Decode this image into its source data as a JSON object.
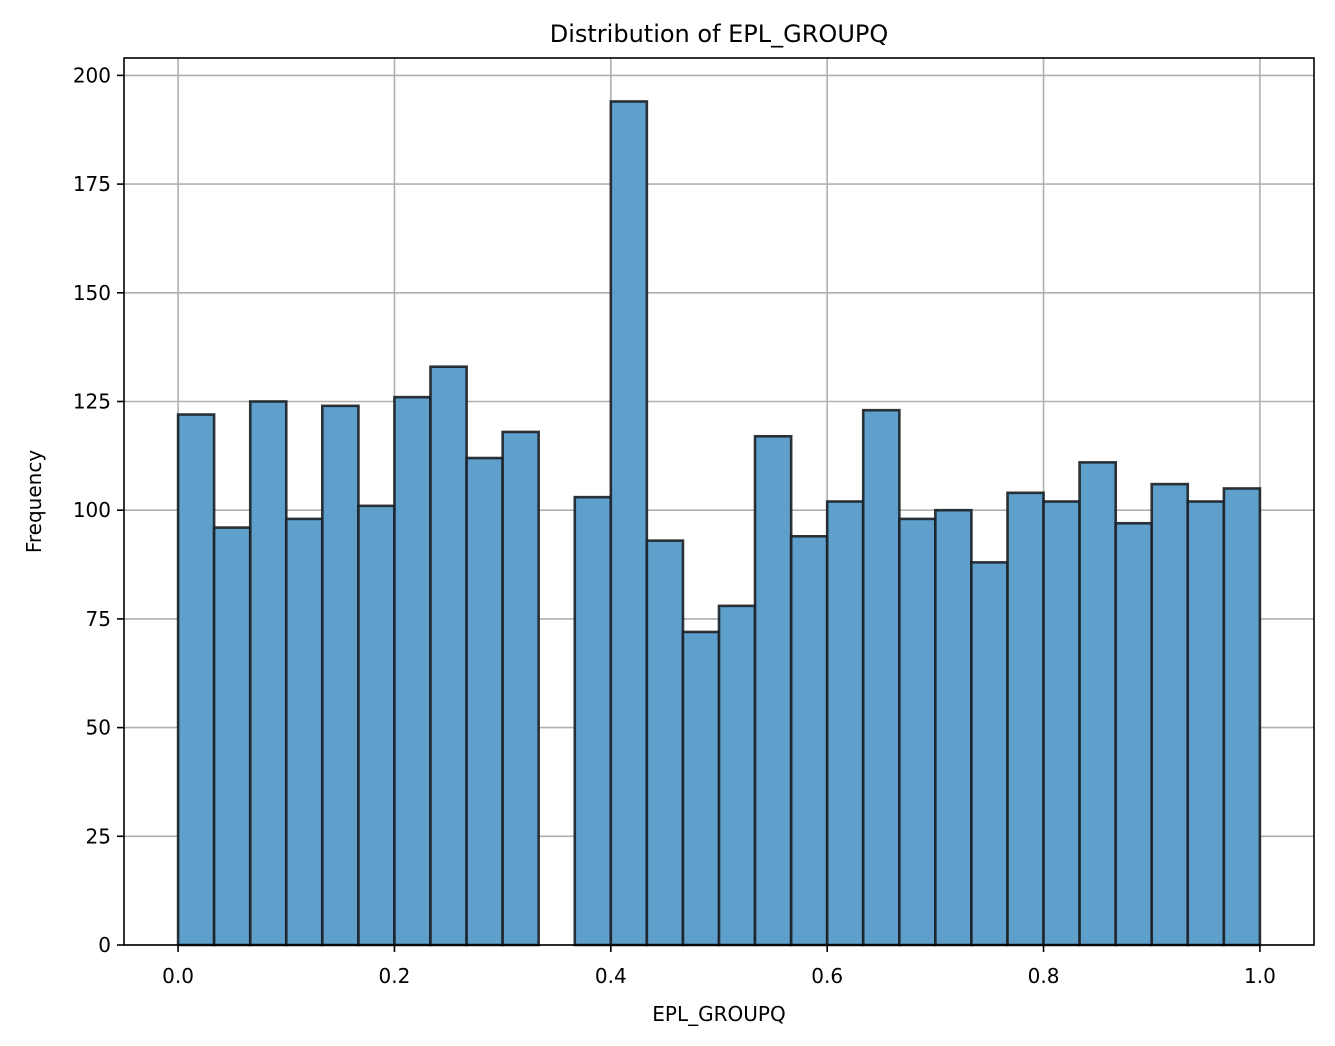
{
  "chart_data": {
    "type": "bar",
    "title": "Distribution of EPL_GROUPQ",
    "xlabel": "EPL_GROUPQ",
    "ylabel": "Frequency",
    "bin_edges": [
      0.0,
      0.0333,
      0.0667,
      0.1,
      0.1333,
      0.1667,
      0.2,
      0.2333,
      0.2667,
      0.3,
      0.3333,
      0.3667,
      0.4,
      0.4333,
      0.4667,
      0.5,
      0.5333,
      0.5667,
      0.6,
      0.6333,
      0.6667,
      0.7,
      0.7333,
      0.7667,
      0.8,
      0.8333,
      0.8667,
      0.9,
      0.9333,
      0.9667,
      1.0
    ],
    "values": [
      122,
      96,
      125,
      98,
      124,
      101,
      126,
      133,
      112,
      118,
      0,
      103,
      194,
      93,
      72,
      78,
      117,
      94,
      102,
      123,
      98,
      100,
      88,
      104,
      102,
      111,
      97,
      106,
      102,
      105
    ],
    "xlim": [
      -0.05,
      1.05
    ],
    "ylim": [
      0,
      204
    ],
    "x_ticks": [
      "0.0",
      "0.2",
      "0.4",
      "0.6",
      "0.8",
      "1.0"
    ],
    "y_ticks": [
      "0",
      "25",
      "50",
      "75",
      "100",
      "125",
      "150",
      "175",
      "200"
    ],
    "grid": true,
    "bar_color": "#5f9fcb",
    "edge_color": "#1b1f24"
  }
}
